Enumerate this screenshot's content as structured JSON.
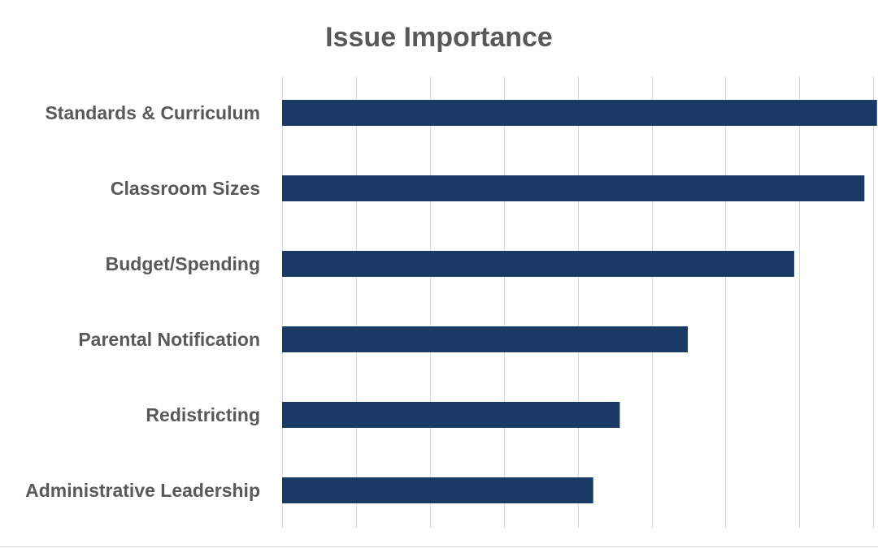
{
  "chart_data": {
    "type": "bar",
    "orientation": "horizontal",
    "title": "Issue Importance",
    "xlabel": "",
    "ylabel": "",
    "categories": [
      "Standards & Curriculum",
      "Classroom Sizes",
      "Budget/Spending",
      "Parental Notification",
      "Redistricting",
      "Administrative Leadership"
    ],
    "values": [
      8.05,
      7.88,
      6.93,
      5.49,
      4.57,
      4.21
    ],
    "xlim": [
      0,
      8
    ],
    "grid_step": 1,
    "grid": true,
    "legend": "none",
    "bar_color": "#1a3a66"
  }
}
